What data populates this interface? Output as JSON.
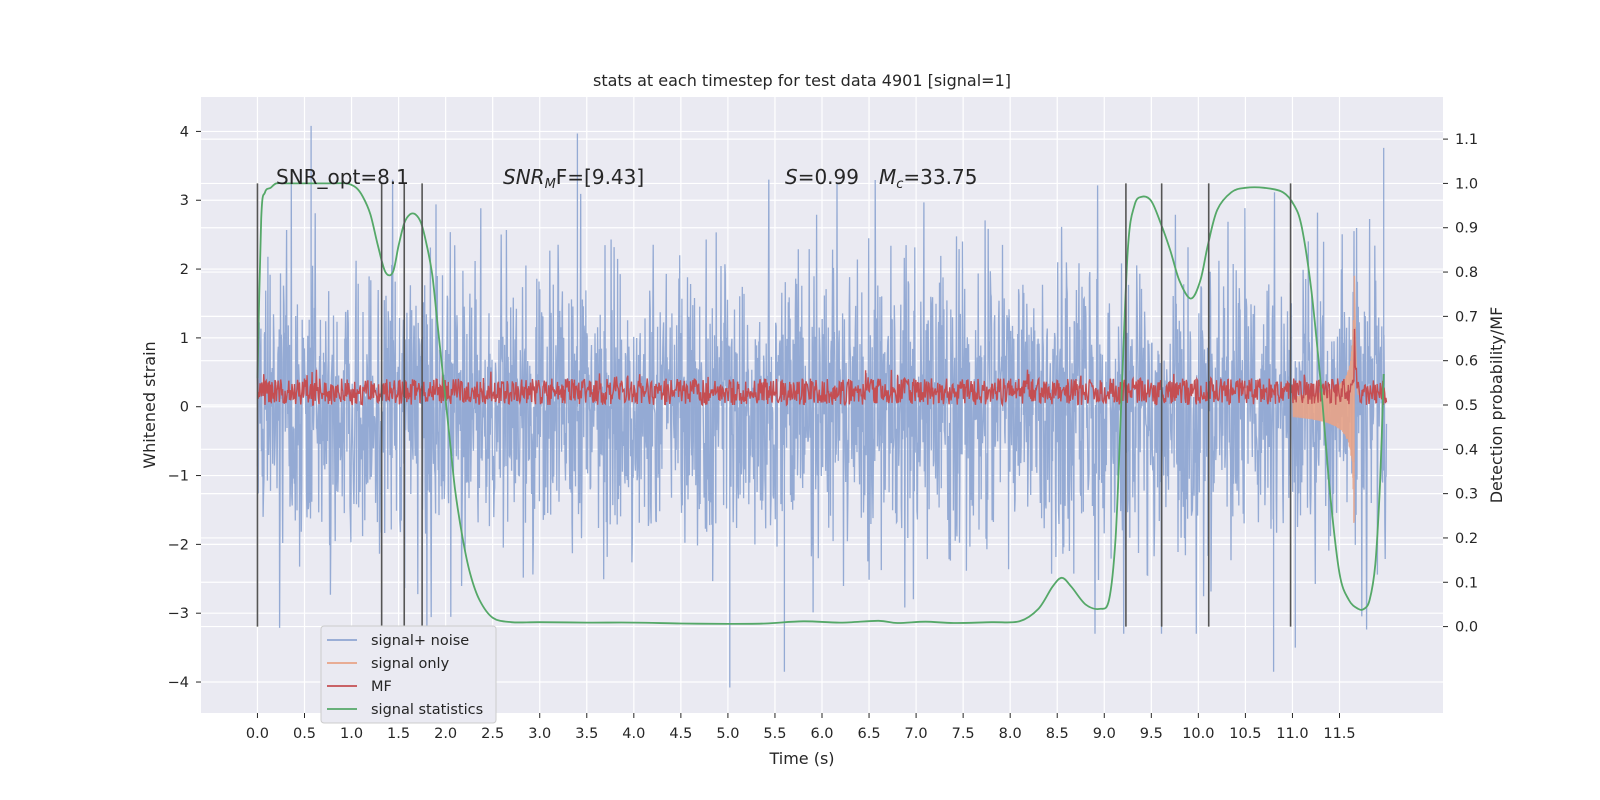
{
  "chart_data": {
    "type": "line",
    "title": "stats at each timestep for test data 4901 [signal=1]",
    "xlabel": "Time (s)",
    "ylabel": "Whitened strain",
    "y2label": "Detection probability/MF",
    "xlim": [
      -0.6,
      12.6
    ],
    "ylim": [
      -4.45,
      4.5
    ],
    "y2lim": [
      -0.195,
      1.195
    ],
    "xticks": [
      0.0,
      0.5,
      1.0,
      1.5,
      2.0,
      2.5,
      3.0,
      3.5,
      4.0,
      4.5,
      5.0,
      5.5,
      6.0,
      6.5,
      7.0,
      7.5,
      8.0,
      8.5,
      9.0,
      9.5,
      10.0,
      10.5,
      11.0,
      11.5
    ],
    "xtick_labels": [
      "0.0",
      "0.5",
      "1.0",
      "1.5",
      "2.0",
      "2.5",
      "3.0",
      "3.5",
      "4.0",
      "4.5",
      "5.0",
      "5.5",
      "6.0",
      "6.5",
      "7.0",
      "7.5",
      "8.0",
      "8.5",
      "9.0",
      "9.5",
      "10.0",
      "10.5",
      "11.0",
      "11.5"
    ],
    "yticks": [
      4,
      3,
      2,
      1,
      0,
      -1,
      -2,
      -3,
      -4
    ],
    "ytick_labels": [
      "4",
      "3",
      "2",
      "1",
      "0",
      "−1",
      "−2",
      "−3",
      "−4"
    ],
    "y2ticks": [
      1.1,
      1.0,
      0.9,
      0.8,
      0.7,
      0.6,
      0.5,
      0.4,
      0.3,
      0.2,
      0.1,
      0.0
    ],
    "y2tick_labels": [
      "1.1",
      "1.0",
      "0.9",
      "0.8",
      "0.7",
      "0.6",
      "0.5",
      "0.4",
      "0.3",
      "0.2",
      "0.1",
      "0.0"
    ],
    "grid": true,
    "legend_position": "lower-left",
    "annotations": {
      "snr_opt": "SNR_opt=8.1",
      "snr_mf_main": "SNR",
      "snr_mf_sub": "M",
      "snr_mf_rest": "F=[9.43]",
      "s_main": "S",
      "s_rest": "=0.99",
      "mc_main": "M",
      "mc_sub": "c",
      "mc_rest": "=33.75"
    },
    "vertical_markers_s": [
      0.0,
      1.32,
      1.56,
      1.75,
      9.23,
      9.61,
      10.11,
      10.98
    ],
    "series": [
      {
        "name": "signal+ noise",
        "color": "#8fa6d2",
        "description_envelope": {
          "core": [
            -1.3,
            1.3
          ],
          "typical_peaks": [
            -2.8,
            3.0
          ],
          "extremes": [
            -4.1,
            4.1
          ]
        },
        "notable_peaks": [
          [
            0.57,
            4.08
          ],
          [
            3.4,
            3.97
          ],
          [
            11.97,
            3.76
          ],
          [
            5.02,
            -4.08
          ],
          [
            10.8,
            -3.85
          ],
          [
            5.6,
            -3.85
          ],
          [
            11.03,
            -3.5
          ]
        ]
      },
      {
        "name": "signal only",
        "color": "#e8a387",
        "chirp_start_s": 11.0,
        "merger_s": 11.66,
        "peak_amplitude": 1.9
      },
      {
        "name": "MF",
        "color": "#c44e52",
        "baseline": 0.53,
        "spread": 0.03,
        "peak": [
          11.66,
          0.67
        ]
      },
      {
        "name": "signal statistics",
        "color": "#55a868",
        "x": [
          0.0,
          0.04,
          0.08,
          0.14,
          0.2,
          0.3,
          0.45,
          0.6,
          0.8,
          0.95,
          1.05,
          1.12,
          1.2,
          1.28,
          1.36,
          1.44,
          1.5,
          1.56,
          1.62,
          1.68,
          1.74,
          1.8,
          1.86,
          1.92,
          1.98,
          2.04,
          2.1,
          2.18,
          2.26,
          2.36,
          2.5,
          2.7,
          3.0,
          3.5,
          4.0,
          4.5,
          5.0,
          5.4,
          5.8,
          6.2,
          6.6,
          6.8,
          7.1,
          7.4,
          7.8,
          8.1,
          8.3,
          8.45,
          8.55,
          8.65,
          8.8,
          8.95,
          9.05,
          9.12,
          9.18,
          9.25,
          9.32,
          9.4,
          9.5,
          9.6,
          9.7,
          9.8,
          9.92,
          10.02,
          10.1,
          10.2,
          10.35,
          10.5,
          10.7,
          10.9,
          11.02,
          11.1,
          11.2,
          11.3,
          11.4,
          11.5,
          11.6,
          11.7,
          11.76,
          11.82,
          11.88,
          11.93,
          11.97
        ],
        "y": [
          0.56,
          0.92,
          0.98,
          0.99,
          1.0,
          1.0,
          1.0,
          1.0,
          1.0,
          1.0,
          0.99,
          0.97,
          0.93,
          0.86,
          0.8,
          0.8,
          0.86,
          0.91,
          0.93,
          0.93,
          0.91,
          0.86,
          0.79,
          0.67,
          0.55,
          0.43,
          0.31,
          0.2,
          0.12,
          0.06,
          0.02,
          0.01,
          0.01,
          0.009,
          0.009,
          0.007,
          0.006,
          0.007,
          0.012,
          0.009,
          0.013,
          0.008,
          0.011,
          0.008,
          0.01,
          0.012,
          0.04,
          0.09,
          0.11,
          0.09,
          0.05,
          0.04,
          0.06,
          0.2,
          0.5,
          0.85,
          0.95,
          0.97,
          0.96,
          0.91,
          0.85,
          0.78,
          0.74,
          0.78,
          0.86,
          0.94,
          0.98,
          0.99,
          0.99,
          0.98,
          0.95,
          0.9,
          0.76,
          0.55,
          0.3,
          0.12,
          0.06,
          0.04,
          0.04,
          0.06,
          0.14,
          0.32,
          0.57
        ]
      }
    ]
  }
}
